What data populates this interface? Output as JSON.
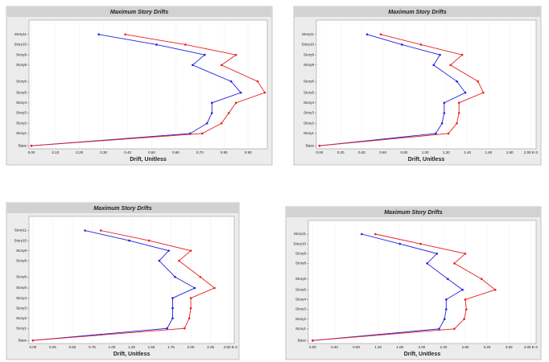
{
  "chart_data": [
    {
      "type": "line",
      "title": "Maximum Story Drifts",
      "xlabel": "Drift, Unitless",
      "xlim": [
        -0.01,
        0.98
      ],
      "xticks": [
        {
          "value": 0,
          "label": "0.00"
        },
        {
          "value": 0.1,
          "label": "0.10"
        },
        {
          "value": 0.2,
          "label": "0.20"
        },
        {
          "value": 0.3,
          "label": "0.30"
        },
        {
          "value": 0.4,
          "label": "0.40"
        },
        {
          "value": 0.5,
          "label": "0.50"
        },
        {
          "value": 0.6,
          "label": "0.60"
        },
        {
          "value": 0.7,
          "label": "0.70"
        },
        {
          "value": 0.8,
          "label": "0.80"
        },
        {
          "value": 0.9,
          "label": "0.90"
        }
      ],
      "ylim": [
        -0.3,
        12.3
      ],
      "yticks": [
        {
          "value": 0,
          "label": "Base"
        },
        {
          "value": 1.2,
          "label": "Story1"
        },
        {
          "value": 2.2,
          "label": "Story2"
        },
        {
          "value": 3.2,
          "label": "Story3"
        },
        {
          "value": 4.2,
          "label": "Story4"
        },
        {
          "value": 5.2,
          "label": "Story5"
        },
        {
          "value": 6.3,
          "label": "Story6"
        },
        {
          "value": 7.9,
          "label": "Story8"
        },
        {
          "value": 8.9,
          "label": "Story9"
        },
        {
          "value": 9.9,
          "label": "Story10"
        },
        {
          "value": 10.9,
          "label": "Story11"
        }
      ],
      "grid": true,
      "series": [
        {
          "color": "#2020e0",
          "values": [
            0,
            0.66,
            0.73,
            0.75,
            0.75,
            0.87,
            0.83,
            0.67,
            0.72,
            0.52,
            0.28
          ]
        },
        {
          "color": "#e82020",
          "values": [
            0,
            0.71,
            0.79,
            0.82,
            0.85,
            0.97,
            0.94,
            0.79,
            0.85,
            0.64,
            0.39
          ]
        }
      ]
    },
    {
      "type": "line",
      "title": "Maximum Story Drifts",
      "xlabel": "Drift, Unitless",
      "xlim": [
        -0.03,
        2.05
      ],
      "xticks": [
        {
          "value": 0,
          "label": "0.00"
        },
        {
          "value": 0.2,
          "label": "0.20"
        },
        {
          "value": 0.4,
          "label": "0.40"
        },
        {
          "value": 0.6,
          "label": "0.60"
        },
        {
          "value": 0.8,
          "label": "0.80"
        },
        {
          "value": 1.0,
          "label": "1.00"
        },
        {
          "value": 1.2,
          "label": "1.20"
        },
        {
          "value": 1.4,
          "label": "1.40"
        },
        {
          "value": 1.6,
          "label": "1.60"
        },
        {
          "value": 1.8,
          "label": "1.80"
        },
        {
          "value": 2.0,
          "label": "2.00 E-3"
        }
      ],
      "ylim": [
        -0.3,
        12.3
      ],
      "yticks": [
        {
          "value": 0,
          "label": "Base"
        },
        {
          "value": 1.2,
          "label": "Story1"
        },
        {
          "value": 2.2,
          "label": "Story2"
        },
        {
          "value": 3.2,
          "label": "Story3"
        },
        {
          "value": 4.2,
          "label": "Story4"
        },
        {
          "value": 5.2,
          "label": "Story5"
        },
        {
          "value": 6.3,
          "label": "Story6"
        },
        {
          "value": 7.9,
          "label": "Story8"
        },
        {
          "value": 8.9,
          "label": "Story9"
        },
        {
          "value": 9.9,
          "label": "Story10"
        },
        {
          "value": 10.9,
          "label": "Story11"
        }
      ],
      "grid": true,
      "series": [
        {
          "color": "#2020e0",
          "values": [
            0,
            1.1,
            1.16,
            1.18,
            1.18,
            1.38,
            1.3,
            1.08,
            1.14,
            0.78,
            0.45
          ]
        },
        {
          "color": "#e82020",
          "values": [
            0,
            1.22,
            1.3,
            1.32,
            1.32,
            1.55,
            1.5,
            1.24,
            1.35,
            0.96,
            0.58
          ]
        }
      ]
    },
    {
      "type": "line",
      "title": "Maximum Story Drifts",
      "xlabel": "Drift, Unitless",
      "xlim": [
        -0.05,
        2.55
      ],
      "xticks": [
        {
          "value": 0,
          "label": "0.00"
        },
        {
          "value": 0.25,
          "label": "0.25"
        },
        {
          "value": 0.5,
          "label": "0.50"
        },
        {
          "value": 0.75,
          "label": "0.75"
        },
        {
          "value": 1.0,
          "label": "1.00"
        },
        {
          "value": 1.25,
          "label": "1.25"
        },
        {
          "value": 1.5,
          "label": "1.50"
        },
        {
          "value": 1.75,
          "label": "1.75"
        },
        {
          "value": 2.0,
          "label": "2.00"
        },
        {
          "value": 2.25,
          "label": "2.25"
        },
        {
          "value": 2.5,
          "label": "2.50 E-3"
        }
      ],
      "ylim": [
        -0.3,
        12.3
      ],
      "yticks": [
        {
          "value": 0,
          "label": "Base"
        },
        {
          "value": 1.2,
          "label": "Story1"
        },
        {
          "value": 2.2,
          "label": "Story2"
        },
        {
          "value": 3.2,
          "label": "Story3"
        },
        {
          "value": 4.2,
          "label": "Story4"
        },
        {
          "value": 5.2,
          "label": "Story5"
        },
        {
          "value": 6.3,
          "label": "Story6"
        },
        {
          "value": 7.9,
          "label": "Story8"
        },
        {
          "value": 8.9,
          "label": "Story9"
        },
        {
          "value": 9.9,
          "label": "Story10"
        },
        {
          "value": 10.9,
          "label": "Story11"
        }
      ],
      "grid": true,
      "series": [
        {
          "color": "#2020e0",
          "values": [
            0,
            1.7,
            1.77,
            1.77,
            1.77,
            2.05,
            1.8,
            1.6,
            1.72,
            1.22,
            0.66
          ]
        },
        {
          "color": "#e82020",
          "values": [
            0,
            1.92,
            1.98,
            2.0,
            2.0,
            2.3,
            2.12,
            1.85,
            2.0,
            1.47,
            0.86
          ]
        }
      ]
    },
    {
      "type": "line",
      "title": "Maximum Story Drifts",
      "xlabel": "Drift, Unitless",
      "xlim": [
        -0.08,
        4.1
      ],
      "xticks": [
        {
          "value": 0,
          "label": "0.00"
        },
        {
          "value": 0.4,
          "label": "0.40"
        },
        {
          "value": 0.8,
          "label": "0.80"
        },
        {
          "value": 1.2,
          "label": "1.20"
        },
        {
          "value": 1.6,
          "label": "1.60"
        },
        {
          "value": 2.0,
          "label": "2.00"
        },
        {
          "value": 2.4,
          "label": "2.40"
        },
        {
          "value": 2.8,
          "label": "2.80"
        },
        {
          "value": 3.2,
          "label": "3.20"
        },
        {
          "value": 3.6,
          "label": "3.60"
        },
        {
          "value": 4.0,
          "label": "4.00 E-3"
        }
      ],
      "ylim": [
        -0.3,
        12.3
      ],
      "yticks": [
        {
          "value": 0,
          "label": "Base"
        },
        {
          "value": 1.2,
          "label": "Story1"
        },
        {
          "value": 2.2,
          "label": "Story2"
        },
        {
          "value": 3.2,
          "label": "Story3"
        },
        {
          "value": 4.2,
          "label": "Story4"
        },
        {
          "value": 5.2,
          "label": "Story5"
        },
        {
          "value": 6.3,
          "label": "Story6"
        },
        {
          "value": 7.9,
          "label": "Story8"
        },
        {
          "value": 8.9,
          "label": "Story9"
        },
        {
          "value": 9.9,
          "label": "Story10"
        },
        {
          "value": 10.9,
          "label": "Story11"
        }
      ],
      "grid": true,
      "series": [
        {
          "color": "#2020e0",
          "values": [
            0,
            2.32,
            2.42,
            2.45,
            2.45,
            2.75,
            2.48,
            2.1,
            2.28,
            1.6,
            0.9
          ]
        },
        {
          "color": "#e82020",
          "values": [
            0,
            2.6,
            2.78,
            2.82,
            2.8,
            3.35,
            3.1,
            2.6,
            2.8,
            1.98,
            1.15
          ]
        }
      ]
    }
  ]
}
